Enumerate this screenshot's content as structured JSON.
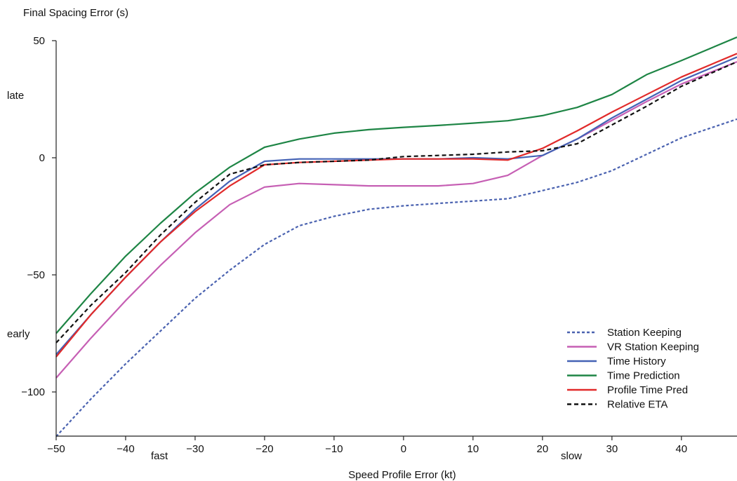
{
  "chart_data": {
    "type": "line",
    "title": "",
    "ylabel": "Final Spacing Error (s)",
    "xlabel": "Speed Profile Error (kt)",
    "xlim": [
      -50,
      48
    ],
    "ylim": [
      -120,
      55
    ],
    "grid": false,
    "legend_position": "bottom-right",
    "x_ticks": [
      -50,
      -40,
      -30,
      -20,
      -10,
      0,
      10,
      20,
      30,
      40
    ],
    "x_tick_labels": [
      "−50",
      "−40",
      "−30",
      "−20",
      "−10",
      "0",
      "10",
      "20",
      "30",
      "40"
    ],
    "y_ticks": [
      50,
      0,
      -50,
      -100
    ],
    "y_tick_labels": [
      "50",
      "0",
      "−50",
      "−100"
    ],
    "annotations": {
      "late": "late",
      "early": "early",
      "fast": "fast",
      "slow": "slow"
    },
    "x": [
      -50,
      -45,
      -40,
      -35,
      -30,
      -25,
      -20,
      -15,
      -10,
      -5,
      0,
      5,
      10,
      15,
      20,
      25,
      30,
      35,
      40,
      48
    ],
    "series": [
      {
        "name": "Station Keeping",
        "color": "#4a62b0",
        "dash": "dotted",
        "values": [
          -119,
          -103,
          -88,
          -74,
          -60,
          -48,
          -37,
          -29,
          -25,
          -22,
          -20.5,
          -19.5,
          -18.5,
          -17.5,
          -14,
          -10.5,
          -5.5,
          1.5,
          8.5,
          16.5
        ]
      },
      {
        "name": "VR Station Keeping",
        "color": "#c65fb4",
        "dash": "solid",
        "values": [
          -94,
          -77,
          -61,
          -46,
          -32,
          -20,
          -12.5,
          -11,
          -11.5,
          -12,
          -12,
          -12,
          -11,
          -7.5,
          1,
          8,
          16,
          24,
          31.5,
          41
        ]
      },
      {
        "name": "Time History",
        "color": "#4462b5",
        "dash": "solid",
        "values": [
          -84,
          -67,
          -51,
          -36,
          -22,
          -10,
          -1.5,
          -0.5,
          -0.5,
          -0.5,
          -0.5,
          -0.5,
          0,
          -0.5,
          1,
          8,
          17,
          25,
          33,
          43
        ]
      },
      {
        "name": "Time Prediction",
        "color": "#1e8545",
        "dash": "solid",
        "values": [
          -75,
          -58,
          -42,
          -28,
          -15,
          -4,
          4.5,
          8,
          10.5,
          12,
          13,
          13.8,
          14.8,
          15.8,
          18,
          21.5,
          27,
          35.5,
          41.5,
          51.5
        ]
      },
      {
        "name": "Profile Time Pred",
        "color": "#e12a2a",
        "dash": "solid",
        "values": [
          -85,
          -67,
          -51,
          -36,
          -23,
          -12,
          -3,
          -2,
          -1.5,
          -1,
          -0.5,
          -0.5,
          -0.5,
          -1,
          4,
          11.5,
          19.5,
          27,
          34.5,
          44.5
        ]
      },
      {
        "name": "Relative ETA",
        "color": "#111111",
        "dash": "dashed",
        "values": [
          -79,
          -63,
          -49,
          -33,
          -19,
          -7,
          -3,
          -2,
          -1.5,
          -1,
          0.5,
          1,
          1.5,
          2.5,
          3,
          6,
          14,
          22,
          30.5,
          41
        ]
      }
    ]
  }
}
